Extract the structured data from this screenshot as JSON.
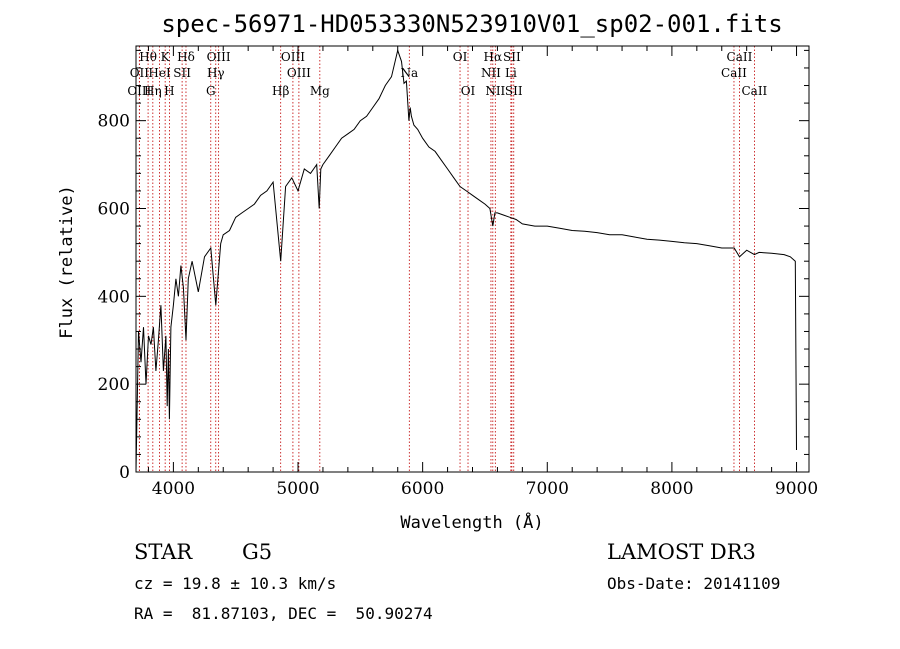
{
  "chart_data": {
    "type": "line",
    "title": "spec-56971-HD053330N523910V01_sp02-001.fits",
    "xlabel": "Wavelength (Å)",
    "ylabel": "Flux (relative)",
    "xlim": [
      3700,
      9100
    ],
    "ylim": [
      0,
      970
    ],
    "xticks": [
      4000,
      5000,
      6000,
      7000,
      8000,
      9000
    ],
    "yticks": [
      0,
      200,
      400,
      600,
      800
    ],
    "xtick_labels": [
      "4000",
      "5000",
      "6000",
      "7000",
      "8000",
      "9000"
    ],
    "ytick_labels": [
      "0",
      "200",
      "400",
      "600",
      "800"
    ],
    "series": [
      {
        "name": "flux",
        "x": [
          3700,
          3720,
          3740,
          3760,
          3780,
          3800,
          3820,
          3840,
          3860,
          3880,
          3900,
          3920,
          3940,
          3950,
          3960,
          3968,
          3980,
          4000,
          4020,
          4040,
          4060,
          4080,
          4101,
          4120,
          4150,
          4200,
          4250,
          4300,
          4340,
          4380,
          4400,
          4450,
          4500,
          4550,
          4600,
          4650,
          4700,
          4750,
          4800,
          4861,
          4900,
          4950,
          5000,
          5050,
          5100,
          5150,
          5170,
          5183,
          5200,
          5250,
          5300,
          5350,
          5400,
          5450,
          5500,
          5550,
          5600,
          5650,
          5700,
          5750,
          5800,
          5830,
          5850,
          5870,
          5890,
          5900,
          5910,
          5930,
          5960,
          6000,
          6050,
          6100,
          6150,
          6200,
          6250,
          6300,
          6350,
          6400,
          6450,
          6500,
          6540,
          6563,
          6580,
          6600,
          6650,
          6700,
          6750,
          6800,
          6900,
          7000,
          7100,
          7200,
          7300,
          7400,
          7500,
          7600,
          7700,
          7800,
          7900,
          8000,
          8100,
          8200,
          8300,
          8400,
          8500,
          8542,
          8600,
          8662,
          8700,
          8800,
          8900,
          8950,
          8990,
          9000
        ],
        "y": [
          0,
          320,
          250,
          330,
          200,
          310,
          290,
          330,
          230,
          300,
          380,
          230,
          310,
          150,
          280,
          120,
          330,
          380,
          440,
          400,
          470,
          420,
          300,
          440,
          480,
          410,
          490,
          510,
          380,
          520,
          540,
          550,
          580,
          590,
          600,
          610,
          630,
          640,
          660,
          480,
          650,
          670,
          640,
          690,
          680,
          700,
          600,
          690,
          700,
          720,
          740,
          760,
          770,
          780,
          800,
          810,
          830,
          850,
          880,
          900,
          960,
          935,
          885,
          890,
          800,
          830,
          810,
          790,
          780,
          760,
          740,
          730,
          710,
          690,
          670,
          650,
          640,
          630,
          620,
          610,
          600,
          560,
          590,
          590,
          585,
          580,
          575,
          565,
          560,
          560,
          555,
          550,
          548,
          545,
          540,
          540,
          535,
          530,
          528,
          525,
          522,
          520,
          515,
          510,
          510,
          490,
          505,
          495,
          500,
          498,
          495,
          490,
          480,
          50
        ]
      }
    ],
    "spectral_lines": [
      {
        "label": "Hθ",
        "x": 3797,
        "row": 1
      },
      {
        "label": "OII",
        "x": 3727,
        "row": 2
      },
      {
        "label": "OIII",
        "x": 3727,
        "row": 3
      },
      {
        "label": "K",
        "x": 3934,
        "row": 1
      },
      {
        "label": "HeI",
        "x": 3889,
        "row": 2
      },
      {
        "label": "Hη",
        "x": 3835,
        "row": 3
      },
      {
        "label": "SII",
        "x": 4070,
        "row": 2
      },
      {
        "label": "H",
        "x": 3968,
        "row": 3
      },
      {
        "label": "Hδ",
        "x": 4101,
        "row": 1
      },
      {
        "label": "OIII",
        "x": 4363,
        "row": 1
      },
      {
        "label": "Hγ",
        "x": 4340,
        "row": 2
      },
      {
        "label": "G",
        "x": 4300,
        "row": 3
      },
      {
        "label": "Hβ",
        "x": 4861,
        "row": 3
      },
      {
        "label": "OIII",
        "x": 4959,
        "row": 1
      },
      {
        "label": "OIII",
        "x": 5007,
        "row": 2
      },
      {
        "label": "Mg",
        "x": 5175,
        "row": 3
      },
      {
        "label": "Na",
        "x": 5893,
        "row": 2
      },
      {
        "label": "OI",
        "x": 6300,
        "row": 1
      },
      {
        "label": "OI",
        "x": 6364,
        "row": 3
      },
      {
        "label": "Hα",
        "x": 6563,
        "row": 1
      },
      {
        "label": "SII",
        "x": 6716,
        "row": 1
      },
      {
        "label": "NII",
        "x": 6548,
        "row": 2
      },
      {
        "label": "Li",
        "x": 6708,
        "row": 2
      },
      {
        "label": "NII",
        "x": 6583,
        "row": 3
      },
      {
        "label": "SII",
        "x": 6731,
        "row": 3
      },
      {
        "label": "CaII",
        "x": 8542,
        "row": 1
      },
      {
        "label": "CaII",
        "x": 8498,
        "row": 2
      },
      {
        "label": "CaII",
        "x": 8662,
        "row": 3
      }
    ],
    "line_color": "#000000",
    "marker_color": "#c00000"
  },
  "info": {
    "object_class": "STAR",
    "subclass": "G5",
    "survey": "LAMOST DR3",
    "redshift": "cz = 19.8 ± 10.3 km/s",
    "obs_date": "Obs-Date: 20141109",
    "coords": "RA =  81.87103, DEC =  50.90274"
  }
}
